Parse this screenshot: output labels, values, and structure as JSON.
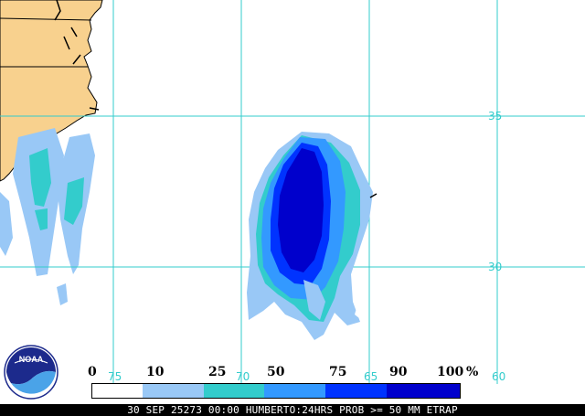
{
  "map": {
    "colors": {
      "land": "#f8d18e",
      "grid": "#33cccc",
      "bin_0_10": "#ffffff",
      "bin_10_25": "#99c8f6",
      "bin_25_50": "#33cccc",
      "bin_50_75": "#3399ff",
      "bin_75_90": "#0033ff",
      "bin_90_100": "#0000cc"
    },
    "latitude_labels": [
      "35",
      "30"
    ],
    "longitude_labels": [
      "75",
      "70",
      "65",
      "60"
    ]
  },
  "legend": {
    "ticks": [
      "0",
      "10",
      "25",
      "50",
      "75",
      "90",
      "100"
    ],
    "unit": "%"
  },
  "footer": {
    "caption": "30 SEP 25273 00:00 HUMBERTO:24HRS PROB >= 50 MM ETRAP"
  },
  "logo": {
    "text": "NOAA"
  }
}
